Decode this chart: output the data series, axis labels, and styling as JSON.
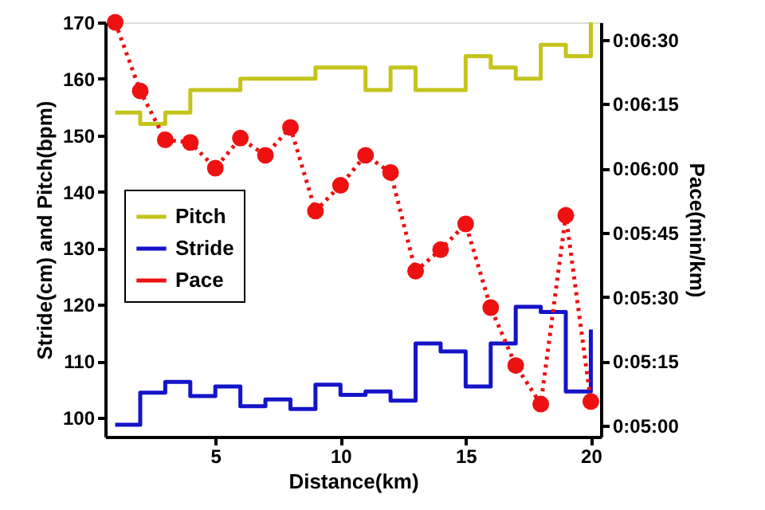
{
  "chart_data": {
    "type": "line",
    "xlabel": "Distance(km)",
    "ylabel": "Stride(cm) and Pitch(bpm)",
    "y2label": "Pace(min/km)",
    "x": [
      1,
      2,
      3,
      4,
      5,
      6,
      7,
      8,
      9,
      10,
      11,
      12,
      13,
      14,
      15,
      16,
      17,
      18,
      19,
      20
    ],
    "xlim": [
      0.6,
      20.4
    ],
    "xticks": [
      5,
      10,
      15,
      20
    ],
    "ylim": [
      96.6,
      170
    ],
    "yticks": [
      100,
      110,
      120,
      130,
      140,
      150,
      160,
      170
    ],
    "y2lim": [
      297.4,
      394
    ],
    "y2ticks": [
      {
        "value": 300,
        "label": "0:05:00"
      },
      {
        "value": 315,
        "label": "0:05:15"
      },
      {
        "value": 330,
        "label": "0:05:30"
      },
      {
        "value": 345,
        "label": "0:05:45"
      },
      {
        "value": 360,
        "label": "0:06:00"
      },
      {
        "value": 375,
        "label": "0:06:15"
      },
      {
        "value": 390,
        "label": "0:06:30"
      }
    ],
    "grid": false,
    "legend": "left",
    "series": [
      {
        "name": "Pitch",
        "type": "step",
        "color": "#c4c41c",
        "line_style": "solid",
        "marker": "none",
        "values": [
          154,
          152,
          154,
          158,
          158,
          160,
          160,
          160,
          162,
          162,
          158,
          162,
          158,
          158,
          164,
          162,
          160,
          166,
          164,
          170
        ]
      },
      {
        "name": "Stride",
        "type": "step",
        "color": "#1414c8",
        "line_style": "solid",
        "marker": "none",
        "values": [
          98.7,
          104.4,
          106.3,
          103.8,
          105.5,
          102,
          103.2,
          101.5,
          105.8,
          104,
          104.6,
          103,
          113.1,
          111.7,
          105.5,
          113.1,
          119.6,
          118.7,
          104.6,
          115.6
        ]
      },
      {
        "name": "Pace",
        "axis": "y2",
        "color": "#ee1111",
        "line_style": "dotted",
        "marker": "circle",
        "values": [
          394,
          378,
          366.6,
          366,
          360,
          367,
          363,
          369.5,
          350,
          356,
          363,
          359,
          336,
          341,
          347,
          327.5,
          314,
          305,
          349,
          305.6
        ]
      }
    ]
  }
}
